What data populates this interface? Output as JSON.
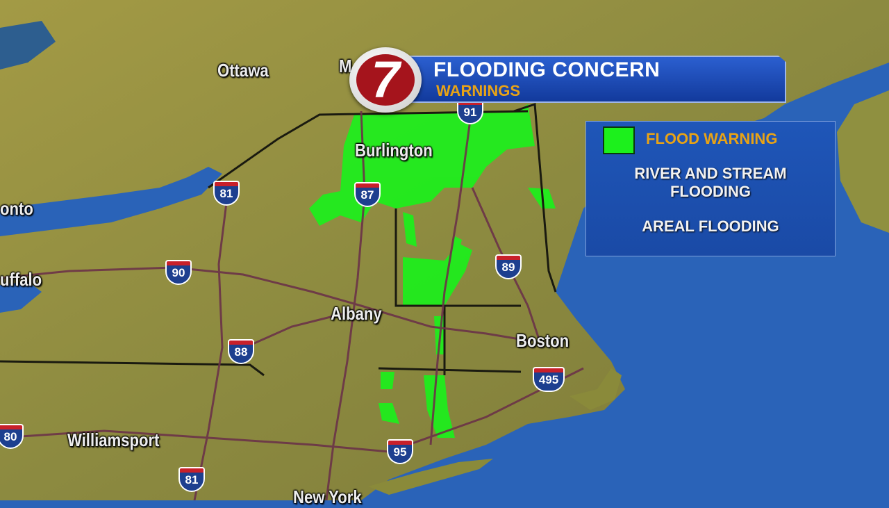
{
  "header": {
    "title": "FLOODING CONCERN",
    "subtitle": "WARNINGS"
  },
  "logo": {
    "text": "7",
    "color": "#a5141c"
  },
  "legend": {
    "swatch_color": "#1cf01c",
    "label": "FLOOD WARNING",
    "items": [
      "RIVER AND STREAM FLOODING",
      "AREAL FLOODING"
    ]
  },
  "cities": [
    "Ottawa",
    "M",
    "Burlington",
    "onto",
    "uffalo",
    "Albany",
    "Boston",
    "Williamsport",
    "New York"
  ],
  "interstates": [
    "81",
    "87",
    "91",
    "89",
    "90",
    "88",
    "495",
    "95",
    "80",
    "81"
  ],
  "colors": {
    "ocean": "#2a63b8",
    "land": "#8a8a3a",
    "warning": "#1cf01c",
    "highway": "#6b3348",
    "header_text_accent": "#e8a316"
  }
}
